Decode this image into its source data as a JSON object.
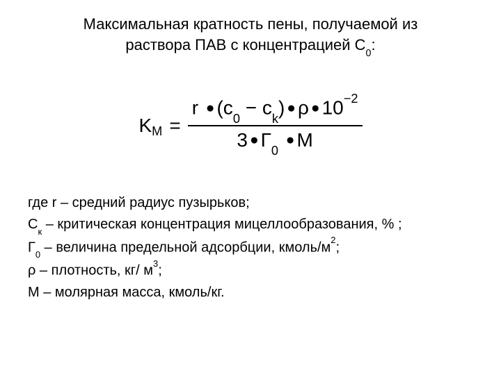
{
  "title_line1": "Максимальная кратность пены, получаемой из",
  "title_line2": "раствора ПАВ с концентрацией С",
  "title_sub": "0",
  "title_colon": ":",
  "formula": {
    "lhs_K": "K",
    "lhs_M": "M",
    "equals": "=",
    "num_r": "r",
    "num_dot": "●",
    "num_open": "(c",
    "num_c0sub": "0",
    "num_minus": " − c",
    "num_cksub": "k",
    "num_close": ")",
    "num_rho": "ρ",
    "num_ten": "10",
    "num_exp": "−2",
    "den_3": "3",
    "den_G": "Г",
    "den_G0": "0",
    "den_M": "M"
  },
  "defs": {
    "d1_a": "где r – средний радиус пузырьков;",
    "d2_a": "С",
    "d2_sub": "к",
    "d2_b": " – критическая концентрация мицеллообразования, % ;",
    "d3_a": "Г",
    "d3_sub": "0",
    "d3_b": " – величина предельной адсорбции, кмоль/м",
    "d3_sup": "2",
    "d3_c": ";",
    "d4_a": "ρ – плотность, кг/ м",
    "d4_sup": "3",
    "d4_b": ";",
    "d5_a": "М – молярная масса, кмоль/кг."
  },
  "style": {
    "background": "#ffffff",
    "text_color": "#000000",
    "title_fontsize": 22,
    "formula_fontsize": 28,
    "defs_fontsize": 20,
    "font_family": "Arial"
  }
}
